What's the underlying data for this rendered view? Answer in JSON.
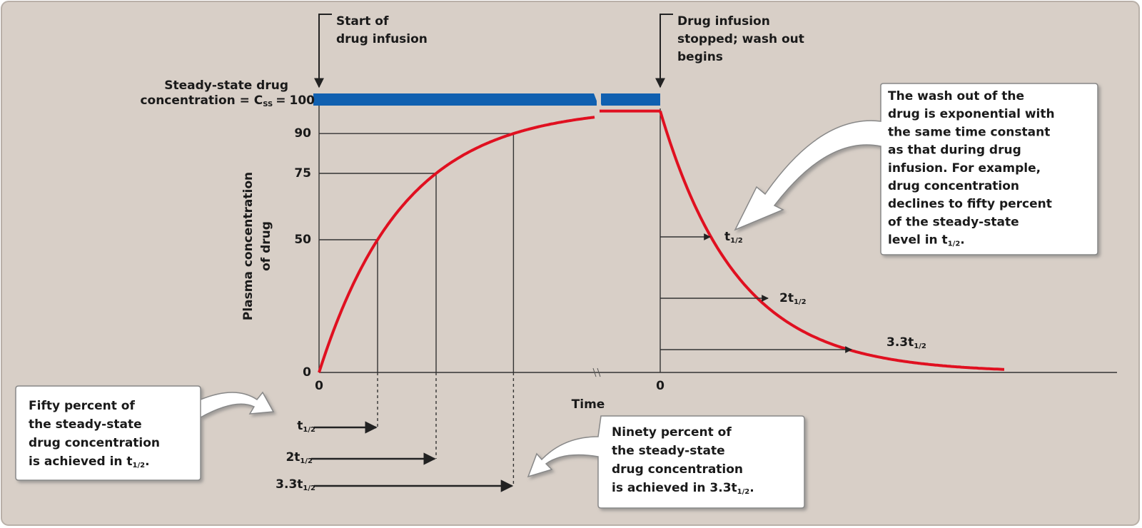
{
  "annotations": {
    "start": [
      "Start of",
      "drug infusion"
    ],
    "stop": [
      "Drug infusion",
      "stopped; wash out",
      "begins"
    ]
  },
  "steady_state": {
    "lines": [
      "Steady-state drug",
      "concentration = C"
    ],
    "sub": "SS",
    "equals": "=",
    "value": 100
  },
  "y_axis": {
    "title": [
      "Plasma concentration",
      "of drug"
    ],
    "ticks": [
      0,
      50,
      75,
      90
    ]
  },
  "x_axis": {
    "title": "Time",
    "origin_labels": [
      0,
      0
    ]
  },
  "rise_markers": [
    {
      "main": "t",
      "sub": "1/2"
    },
    {
      "main": "2t",
      "sub": "1/2"
    },
    {
      "main": "3.3t",
      "sub": "1/2"
    }
  ],
  "washout_markers": [
    {
      "main": "t",
      "sub": "1/2"
    },
    {
      "main": "2t",
      "sub": "1/2"
    },
    {
      "main": "3.3t",
      "sub": "1/2"
    }
  ],
  "callouts": {
    "washout": {
      "lines": [
        "The wash out of the",
        "drug is exponential with",
        "the same time constant",
        "as that during drug",
        "infusion. For example,",
        "drug concentration",
        "declines to fifty percent",
        "of the steady-state"
      ],
      "last": "level in t",
      "sub": "1/2",
      "end": "."
    },
    "fifty": {
      "lines": [
        "Fifty percent of",
        "the steady-state",
        "drug concentration"
      ],
      "last": "is achieved in t",
      "sub": "1/2",
      "end": "."
    },
    "ninety": {
      "lines": [
        "Ninety percent of",
        "the steady-state",
        "drug concentration"
      ],
      "last": "is achieved in 3.3t",
      "sub": "1/2",
      "end": "."
    }
  }
}
